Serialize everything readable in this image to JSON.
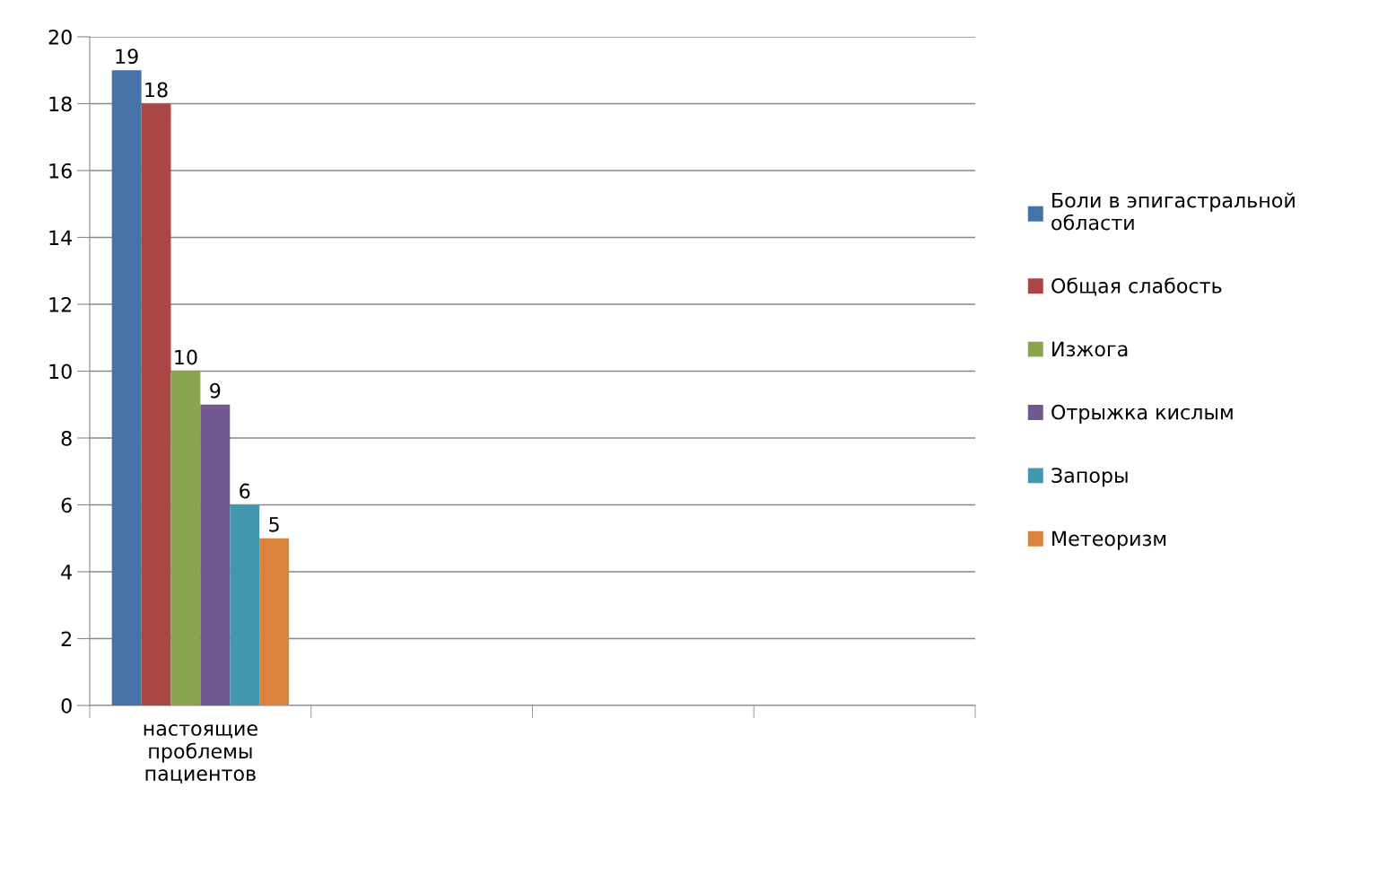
{
  "chart_data": {
    "type": "bar",
    "categories": [
      "настоящие\nпроблемы\nпациентов",
      null,
      null,
      null
    ],
    "series": [
      {
        "name": "Боли в эпигастральной\nобласти",
        "color": "#4572a7",
        "values": [
          19,
          null,
          null,
          null
        ]
      },
      {
        "name": "Общая слабость",
        "color": "#aa4643",
        "values": [
          18,
          null,
          null,
          null
        ]
      },
      {
        "name": "Изжога",
        "color": "#89a54e",
        "values": [
          10,
          null,
          null,
          null
        ]
      },
      {
        "name": "Отрыжка кислым",
        "color": "#71588f",
        "values": [
          9,
          null,
          null,
          null
        ]
      },
      {
        "name": "Запоры",
        "color": "#4198af",
        "values": [
          6,
          null,
          null,
          null
        ]
      },
      {
        "name": "Метеоризм",
        "color": "#db843d",
        "values": [
          5,
          null,
          null,
          null
        ]
      }
    ],
    "ylim": [
      0,
      20
    ],
    "yticks": [
      0,
      2,
      4,
      6,
      8,
      10,
      12,
      14,
      16,
      18,
      20
    ],
    "grid": "y",
    "legend": "right",
    "data_labels": true
  }
}
